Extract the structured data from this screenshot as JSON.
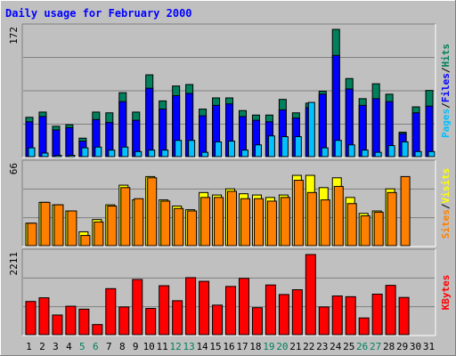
{
  "chart_data": {
    "type": "bar",
    "title": "Daily usage for February 2000",
    "x": [
      "1",
      "2",
      "3",
      "4",
      "5",
      "6",
      "7",
      "8",
      "9",
      "10",
      "11",
      "12",
      "13",
      "14",
      "15",
      "16",
      "17",
      "18",
      "19",
      "20",
      "21",
      "22",
      "23",
      "24",
      "25",
      "26",
      "27",
      "28",
      "29",
      "30",
      "31"
    ],
    "weekend_days": [
      "5",
      "6",
      "12",
      "13",
      "19",
      "20",
      "26",
      "27"
    ],
    "colors": {
      "background": "#c0c0c0",
      "title": "#0000ff",
      "hits": "#00805c",
      "files": "#0000ff",
      "pages": "#00c0ff",
      "visits": "#ffff00",
      "sites": "#ff8000",
      "kbytes": "#ff0000",
      "weekend_label": "#00805c",
      "weekday_label": "#000000"
    },
    "panels": [
      {
        "name": "hits_files_pages",
        "ymax": 172,
        "ymax_label": "172",
        "legend": [
          "Pages",
          "Files",
          "Hits"
        ],
        "series": [
          {
            "name": "Hits",
            "values": [
              54,
              61,
              42,
              44,
              26,
              61,
              60,
              87,
              61,
              111,
              76,
              96,
              98,
              65,
              80,
              80,
              63,
              57,
              57,
              78,
              60,
              73,
              89,
              172,
              106,
              79,
              99,
              85,
              34,
              68,
              90
            ]
          },
          {
            "name": "Files",
            "values": [
              48,
              55,
              37,
              40,
              22,
              51,
              47,
              75,
              50,
              93,
              65,
              83,
              86,
              56,
              70,
              72,
              55,
              50,
              48,
              64,
              53,
              67,
              85,
              137,
              92,
              70,
              79,
              75,
              32,
              60,
              69
            ]
          },
          {
            "name": "Pages",
            "values": [
              13,
              6,
              3,
              3,
              13,
              14,
              10,
              14,
              8,
              10,
              10,
              23,
              23,
              7,
              21,
              22,
              10,
              17,
              29,
              28,
              28,
              74,
              13,
              23,
              17,
              10,
              7,
              16,
              21,
              8,
              8
            ]
          }
        ]
      },
      {
        "name": "visits_sites",
        "ymax": 66,
        "ymax_label": "66",
        "legend": [
          "Sites",
          "Visits"
        ],
        "series": [
          {
            "name": "Visits",
            "values": [
              19,
              36,
              34,
              29,
              12,
              22,
              34,
              50,
              38,
              57,
              38,
              33,
              30,
              44,
              42,
              47,
              43,
              42,
              40,
              42,
              58,
              58,
              48,
              56,
              40,
              27,
              29,
              47,
              0,
              0,
              0
            ]
          },
          {
            "name": "Sites",
            "values": [
              19,
              36,
              34,
              29,
              9,
              20,
              33,
              48,
              39,
              56,
              37,
              31,
              29,
              40,
              40,
              45,
              39,
              39,
              37,
              40,
              54,
              44,
              38,
              49,
              35,
              25,
              28,
              44,
              57,
              0,
              0
            ]
          }
        ]
      },
      {
        "name": "kbytes",
        "ymax": 2211,
        "ymax_label": "2211",
        "legend": [
          "KBytes"
        ],
        "series": [
          {
            "name": "KBytes",
            "values": [
              930,
              1030,
              560,
              800,
              720,
              300,
              1280,
              780,
              1530,
              740,
              1360,
              950,
              1580,
              1480,
              830,
              1340,
              1560,
              760,
              1380,
              1120,
              1250,
              2211,
              780,
              1080,
              1060,
              480,
              1130,
              1370,
              1040,
              0,
              0
            ]
          }
        ]
      }
    ]
  }
}
